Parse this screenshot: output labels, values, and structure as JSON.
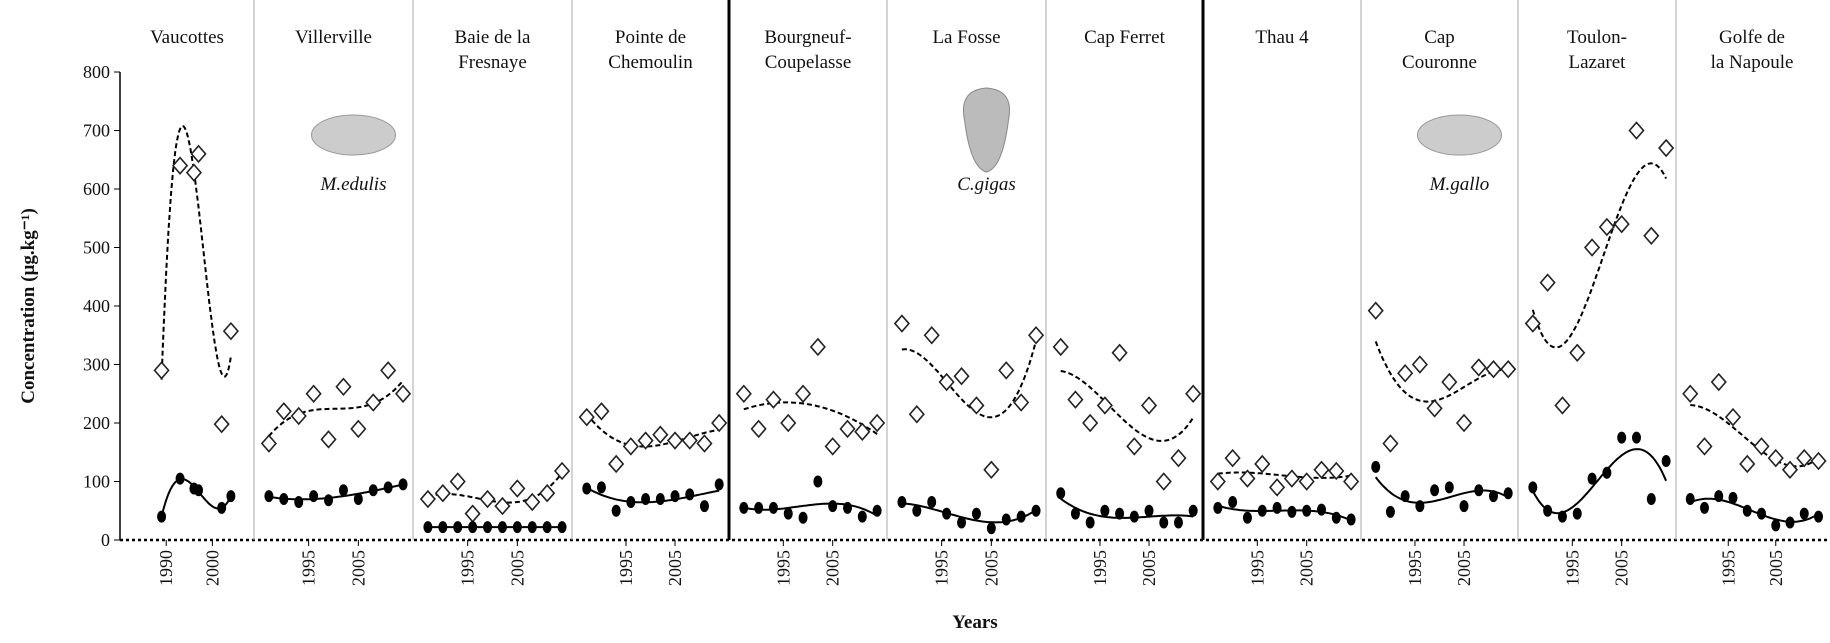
{
  "chart_data": {
    "type": "multi-panel-scatter",
    "y_label": "Concentration (µg.kg⁻¹)",
    "x_label": "Years",
    "ylim": [
      0,
      800
    ],
    "yticks": [
      0,
      100,
      200,
      300,
      400,
      500,
      600,
      700,
      800
    ],
    "diamond_color": "#222",
    "dot_color": "#000",
    "panels": [
      {
        "title": [
          "Vaucottes"
        ],
        "xlim": [
          1980,
          2009
        ],
        "xticks": [
          1990,
          2000
        ],
        "x": [
          1989,
          1993,
          1996,
          1997,
          2002,
          2004
        ],
        "diamond": [
          290,
          640,
          628,
          660,
          198,
          357
        ],
        "dot": [
          40,
          105,
          88,
          85,
          55,
          75
        ]
      },
      {
        "title": [
          "Villerville"
        ],
        "species": "M.edulis",
        "xlim": [
          1984,
          2016
        ],
        "xticks": [
          1995,
          2005
        ],
        "x": [
          1987,
          1990,
          1993,
          1996,
          1999,
          2002,
          2005,
          2008,
          2011,
          2014
        ],
        "diamond": [
          165,
          220,
          212,
          250,
          172,
          262,
          190,
          235,
          290,
          250
        ],
        "dot": [
          75,
          70,
          65,
          75,
          68,
          85,
          70,
          85,
          90,
          95
        ]
      },
      {
        "title": [
          "Baie de la",
          "Fresnaye"
        ],
        "xlim": [
          1984,
          2016
        ],
        "xticks": [
          1995,
          2005
        ],
        "x": [
          1987,
          1990,
          1993,
          1996,
          1999,
          2002,
          2005,
          2008,
          2011,
          2014
        ],
        "diamond": [
          70,
          80,
          100,
          45,
          70,
          58,
          88,
          65,
          80,
          118
        ],
        "dot": [
          22,
          22,
          22,
          22,
          22,
          22,
          22,
          22,
          22,
          22
        ]
      },
      {
        "title": [
          "Pointe de",
          "Chemoulin"
        ],
        "xlim": [
          1984,
          2016
        ],
        "xticks": [
          1995,
          2005
        ],
        "x": [
          1987,
          1990,
          1993,
          1996,
          1999,
          2002,
          2005,
          2008,
          2011,
          2014
        ],
        "diamond": [
          210,
          220,
          130,
          160,
          170,
          180,
          170,
          170,
          165,
          200
        ],
        "dot": [
          88,
          90,
          50,
          65,
          70,
          70,
          75,
          78,
          58,
          95
        ]
      },
      {
        "title": [
          "Bourgneuf-",
          "Coupelasse"
        ],
        "xlim": [
          1984,
          2016
        ],
        "xticks": [
          1995,
          2005
        ],
        "x": [
          1987,
          1990,
          1993,
          1996,
          1999,
          2002,
          2005,
          2008,
          2011,
          2014
        ],
        "diamond": [
          250,
          190,
          240,
          200,
          250,
          330,
          160,
          190,
          185,
          200
        ],
        "dot": [
          55,
          55,
          55,
          45,
          38,
          100,
          58,
          55,
          40,
          50
        ]
      },
      {
        "title": [
          "La Fosse"
        ],
        "species": "C.gigas",
        "xlim": [
          1984,
          2016
        ],
        "xticks": [
          1995,
          2005
        ],
        "x": [
          1987,
          1990,
          1993,
          1996,
          1999,
          2002,
          2005,
          2008,
          2011,
          2014
        ],
        "diamond": [
          370,
          215,
          350,
          270,
          280,
          230,
          120,
          290,
          235,
          350
        ],
        "dot": [
          65,
          50,
          65,
          45,
          30,
          45,
          20,
          35,
          40,
          50
        ]
      },
      {
        "title": [
          "Cap Ferret"
        ],
        "xlim": [
          1984,
          2016
        ],
        "xticks": [
          1995,
          2005
        ],
        "x": [
          1987,
          1990,
          1993,
          1996,
          1999,
          2002,
          2005,
          2008,
          2011,
          2014
        ],
        "diamond": [
          330,
          240,
          200,
          230,
          320,
          160,
          230,
          100,
          140,
          250
        ],
        "dot": [
          80,
          45,
          30,
          50,
          45,
          40,
          50,
          30,
          30,
          50
        ]
      },
      {
        "title": [
          "Thau 4"
        ],
        "xlim": [
          1984,
          2016
        ],
        "xticks": [
          1995,
          2005
        ],
        "x": [
          1987,
          1990,
          1993,
          1996,
          1999,
          2002,
          2005,
          2008,
          2011,
          2014
        ],
        "diamond": [
          100,
          140,
          105,
          130,
          90,
          105,
          100,
          120,
          118,
          100
        ],
        "dot": [
          55,
          65,
          38,
          50,
          55,
          48,
          50,
          52,
          38,
          35
        ]
      },
      {
        "title": [
          "Cap",
          "Couronne"
        ],
        "species": "M.gallo",
        "xlim": [
          1984,
          2016
        ],
        "xticks": [
          1995,
          2005
        ],
        "x": [
          1987,
          1990,
          1993,
          1996,
          1999,
          2002,
          2005,
          2008,
          2011,
          2014
        ],
        "diamond": [
          392,
          165,
          285,
          300,
          225,
          270,
          200,
          295,
          292,
          292
        ],
        "dot": [
          125,
          48,
          75,
          58,
          85,
          90,
          58,
          85,
          75,
          80
        ]
      },
      {
        "title": [
          "Toulon-",
          "Lazaret"
        ],
        "xlim": [
          1984,
          2016
        ],
        "xticks": [
          1995,
          2005
        ],
        "x": [
          1987,
          1990,
          1993,
          1996,
          1999,
          2002,
          2005,
          2008,
          2011,
          2014
        ],
        "diamond": [
          370,
          440,
          230,
          320,
          500,
          535,
          540,
          700,
          520,
          670
        ],
        "dot": [
          90,
          50,
          40,
          45,
          105,
          115,
          175,
          175,
          70,
          135
        ]
      },
      {
        "title": [
          "Golfe de",
          "la Napoule"
        ],
        "xlim": [
          1984,
          2016
        ],
        "xticks": [
          1995,
          2005
        ],
        "x": [
          1987,
          1990,
          1993,
          1996,
          1999,
          2002,
          2005,
          2008,
          2011,
          2014
        ],
        "diamond": [
          250,
          160,
          270,
          210,
          130,
          160,
          140,
          120,
          140,
          135
        ],
        "dot": [
          70,
          55,
          75,
          72,
          50,
          45,
          25,
          30,
          45,
          40
        ]
      }
    ]
  }
}
